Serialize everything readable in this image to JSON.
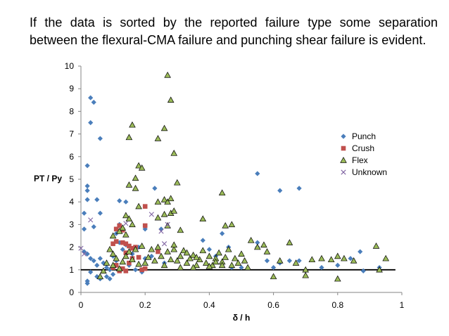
{
  "slide": {
    "caption": "If the data is sorted by the reported failure type some separation between the flexural-CMA failure and punching shear failure is evident."
  },
  "chart_data": {
    "type": "scatter",
    "xlabel": "δ / h",
    "ylabel": "PT / Py",
    "xlim": [
      0,
      1
    ],
    "ylim": [
      0,
      10
    ],
    "x_ticks": [
      "0",
      "0.2",
      "0.4",
      "0.6",
      "0.8",
      "1"
    ],
    "y_ticks": [
      "0",
      "1",
      "2",
      "3",
      "4",
      "5",
      "6",
      "7",
      "8",
      "9",
      "10"
    ],
    "reference_line": {
      "y": 1,
      "x_range": [
        0,
        0.98
      ],
      "color": "#000000"
    },
    "legend_position": "right",
    "series": [
      {
        "name": "Punch",
        "marker": "diamond",
        "color": "#4a7ebb",
        "points": [
          [
            0.03,
            8.6
          ],
          [
            0.04,
            8.4
          ],
          [
            0.03,
            7.5
          ],
          [
            0.06,
            6.8
          ],
          [
            0.02,
            5.6
          ],
          [
            0.02,
            4.7
          ],
          [
            0.02,
            4.5
          ],
          [
            0.05,
            4.1
          ],
          [
            0.02,
            4.1
          ],
          [
            0.12,
            4.05
          ],
          [
            0.14,
            4.0
          ],
          [
            0.23,
            4.6
          ],
          [
            0.06,
            3.5
          ],
          [
            0.04,
            2.9
          ],
          [
            0.01,
            3.5
          ],
          [
            0.01,
            2.8
          ],
          [
            0.12,
            3.0
          ],
          [
            0.11,
            2.6
          ],
          [
            0.01,
            1.8
          ],
          [
            0.02,
            1.7
          ],
          [
            0.03,
            1.5
          ],
          [
            0.04,
            1.4
          ],
          [
            0.05,
            1.2
          ],
          [
            0.06,
            1.5
          ],
          [
            0.07,
            1.3
          ],
          [
            0.08,
            1.1
          ],
          [
            0.09,
            1.0
          ],
          [
            0.1,
            0.8
          ],
          [
            0.1,
            1.6
          ],
          [
            0.11,
            1.4
          ],
          [
            0.12,
            2.2
          ],
          [
            0.13,
            1.9
          ],
          [
            0.14,
            2.1
          ],
          [
            0.16,
            1.7
          ],
          [
            0.18,
            2.0
          ],
          [
            0.2,
            1.5
          ],
          [
            0.2,
            2.8
          ],
          [
            0.22,
            1.6
          ],
          [
            0.25,
            2.8
          ],
          [
            0.26,
            1.3
          ],
          [
            0.05,
            0.7
          ],
          [
            0.06,
            0.6
          ],
          [
            0.08,
            0.7
          ],
          [
            0.09,
            0.6
          ],
          [
            0.02,
            0.5
          ],
          [
            0.02,
            0.4
          ],
          [
            0.03,
            0.9
          ],
          [
            0.15,
            1.2
          ],
          [
            0.17,
            1.0
          ],
          [
            0.19,
            0.9
          ],
          [
            0.38,
            2.3
          ],
          [
            0.4,
            1.9
          ],
          [
            0.42,
            1.6
          ],
          [
            0.44,
            2.6
          ],
          [
            0.46,
            2.0
          ],
          [
            0.47,
            1.1
          ],
          [
            0.5,
            1.1
          ],
          [
            0.55,
            2.2
          ],
          [
            0.55,
            2.0
          ],
          [
            0.58,
            1.4
          ],
          [
            0.6,
            1.1
          ],
          [
            0.55,
            5.25
          ],
          [
            0.62,
            4.5
          ],
          [
            0.68,
            4.6
          ],
          [
            0.62,
            1.3
          ],
          [
            0.65,
            1.4
          ],
          [
            0.68,
            1.4
          ],
          [
            0.75,
            1.1
          ],
          [
            0.8,
            1.2
          ],
          [
            0.84,
            1.5
          ],
          [
            0.87,
            1.8
          ],
          [
            0.88,
            0.95
          ],
          [
            0.93,
            1.1
          ]
        ]
      },
      {
        "name": "Crush",
        "marker": "square",
        "color": "#c0504d",
        "points": [
          [
            0.12,
            2.95
          ],
          [
            0.11,
            2.8
          ],
          [
            0.1,
            2.15
          ],
          [
            0.11,
            2.25
          ],
          [
            0.13,
            2.2
          ],
          [
            0.14,
            2.15
          ],
          [
            0.15,
            2.05
          ],
          [
            0.16,
            1.95
          ],
          [
            0.17,
            2.0
          ],
          [
            0.14,
            1.75
          ],
          [
            0.16,
            1.5
          ],
          [
            0.18,
            1.55
          ],
          [
            0.15,
            1.3
          ],
          [
            0.13,
            1.05
          ],
          [
            0.11,
            1.2
          ],
          [
            0.1,
            1.1
          ],
          [
            0.12,
            0.95
          ],
          [
            0.14,
            0.95
          ],
          [
            0.19,
            1.0
          ],
          [
            0.2,
            1.05
          ],
          [
            0.2,
            2.95
          ],
          [
            0.2,
            3.8
          ],
          [
            0.24,
            1.8
          ],
          [
            0.13,
            2.75
          ]
        ]
      },
      {
        "name": "Flex",
        "marker": "triangle",
        "color": "#9bbb59",
        "points": [
          [
            0.27,
            9.6
          ],
          [
            0.28,
            8.5
          ],
          [
            0.16,
            7.4
          ],
          [
            0.26,
            7.25
          ],
          [
            0.15,
            6.85
          ],
          [
            0.24,
            6.8
          ],
          [
            0.29,
            6.15
          ],
          [
            0.18,
            5.6
          ],
          [
            0.19,
            5.5
          ],
          [
            0.17,
            5.05
          ],
          [
            0.17,
            4.6
          ],
          [
            0.15,
            4.75
          ],
          [
            0.3,
            4.85
          ],
          [
            0.44,
            4.4
          ],
          [
            0.26,
            4.1
          ],
          [
            0.27,
            4.0
          ],
          [
            0.28,
            4.15
          ],
          [
            0.24,
            4.0
          ],
          [
            0.18,
            3.8
          ],
          [
            0.14,
            3.4
          ],
          [
            0.15,
            3.25
          ],
          [
            0.16,
            3.0
          ],
          [
            0.24,
            3.3
          ],
          [
            0.26,
            3.45
          ],
          [
            0.28,
            3.5
          ],
          [
            0.29,
            3.6
          ],
          [
            0.27,
            2.95
          ],
          [
            0.31,
            2.75
          ],
          [
            0.38,
            3.25
          ],
          [
            0.45,
            2.95
          ],
          [
            0.47,
            3.0
          ],
          [
            0.13,
            2.85
          ],
          [
            0.1,
            2.5
          ],
          [
            0.12,
            2.7
          ],
          [
            0.14,
            2.55
          ],
          [
            0.09,
            1.9
          ],
          [
            0.1,
            1.7
          ],
          [
            0.11,
            1.5
          ],
          [
            0.1,
            1.2
          ],
          [
            0.08,
            1.3
          ],
          [
            0.07,
            0.95
          ],
          [
            0.06,
            0.7
          ],
          [
            0.12,
            1.05
          ],
          [
            0.13,
            1.35
          ],
          [
            0.14,
            1.6
          ],
          [
            0.15,
            1.8
          ],
          [
            0.16,
            1.45
          ],
          [
            0.17,
            1.9
          ],
          [
            0.18,
            1.25
          ],
          [
            0.19,
            2.05
          ],
          [
            0.2,
            1.3
          ],
          [
            0.21,
            1.55
          ],
          [
            0.22,
            1.9
          ],
          [
            0.23,
            1.4
          ],
          [
            0.24,
            2.0
          ],
          [
            0.25,
            1.6
          ],
          [
            0.26,
            1.2
          ],
          [
            0.27,
            1.8
          ],
          [
            0.28,
            1.45
          ],
          [
            0.29,
            1.9
          ],
          [
            0.3,
            1.4
          ],
          [
            0.31,
            1.6
          ],
          [
            0.32,
            1.85
          ],
          [
            0.33,
            1.3
          ],
          [
            0.34,
            1.5
          ],
          [
            0.35,
            1.65
          ],
          [
            0.36,
            1.2
          ],
          [
            0.37,
            1.45
          ],
          [
            0.38,
            1.85
          ],
          [
            0.39,
            1.3
          ],
          [
            0.4,
            1.6
          ],
          [
            0.41,
            1.2
          ],
          [
            0.42,
            1.5
          ],
          [
            0.43,
            1.75
          ],
          [
            0.44,
            1.35
          ],
          [
            0.45,
            1.55
          ],
          [
            0.46,
            1.9
          ],
          [
            0.47,
            1.2
          ],
          [
            0.48,
            1.5
          ],
          [
            0.49,
            1.3
          ],
          [
            0.5,
            1.7
          ],
          [
            0.51,
            1.4
          ],
          [
            0.52,
            1.1
          ],
          [
            0.53,
            2.3
          ],
          [
            0.55,
            2.0
          ],
          [
            0.57,
            2.1
          ],
          [
            0.58,
            1.8
          ],
          [
            0.6,
            0.7
          ],
          [
            0.62,
            1.4
          ],
          [
            0.65,
            2.2
          ],
          [
            0.67,
            1.3
          ],
          [
            0.7,
            1.0
          ],
          [
            0.72,
            1.45
          ],
          [
            0.7,
            0.75
          ],
          [
            0.75,
            1.5
          ],
          [
            0.78,
            1.45
          ],
          [
            0.8,
            1.6
          ],
          [
            0.82,
            1.5
          ],
          [
            0.85,
            1.4
          ],
          [
            0.8,
            0.6
          ],
          [
            0.92,
            2.05
          ],
          [
            0.95,
            1.5
          ],
          [
            0.93,
            1.0
          ],
          [
            0.29,
            2.1
          ],
          [
            0.31,
            1.1
          ],
          [
            0.33,
            1.75
          ],
          [
            0.35,
            1.1
          ],
          [
            0.4,
            1.15
          ],
          [
            0.42,
            1.35
          ],
          [
            0.44,
            1.2
          ],
          [
            0.36,
            1.55
          ]
        ]
      },
      {
        "name": "Unknown",
        "marker": "x",
        "color": "#8064a2",
        "points": [
          [
            0.0,
            1.95
          ],
          [
            0.01,
            1.7
          ],
          [
            0.03,
            3.2
          ],
          [
            0.22,
            3.45
          ],
          [
            0.26,
            2.15
          ],
          [
            0.25,
            2.7
          ],
          [
            0.14,
            3.05
          ],
          [
            0.27,
            3.0
          ]
        ]
      }
    ]
  }
}
